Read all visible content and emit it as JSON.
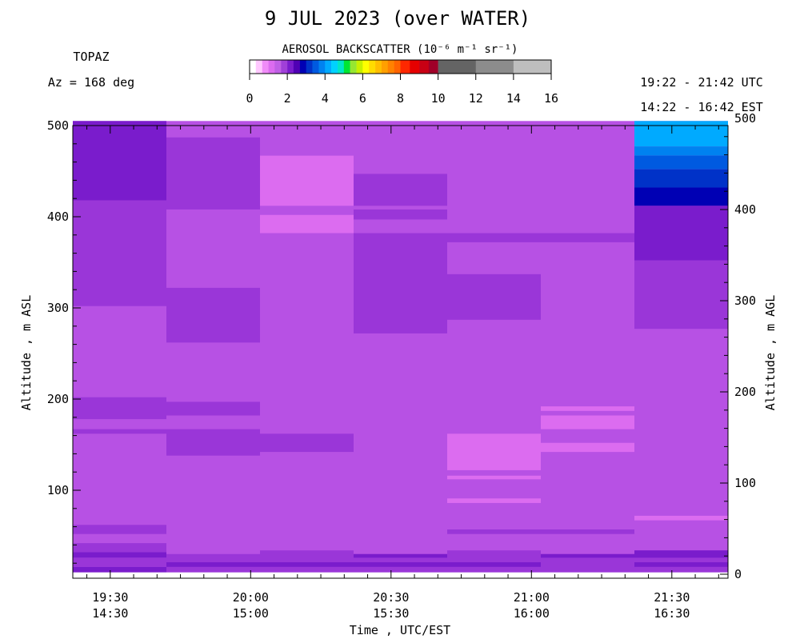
{
  "title": "9 JUL 2023 (over WATER)",
  "site": "TOPAZ",
  "azimuth": "Az = 168 deg",
  "time_range_utc": "19:22 - 21:42 UTC",
  "time_range_local": "14:22 - 16:42 EST",
  "colorbar": {
    "title": "AEROSOL BACKSCATTER (10⁻⁶ m⁻¹ sr⁻¹)",
    "ticks": [
      "0",
      "2",
      "4",
      "6",
      "8",
      "10",
      "12",
      "14",
      "16"
    ],
    "bins": [
      {
        "lo": 0.0,
        "hi": 0.33,
        "color": "#ffffff"
      },
      {
        "lo": 0.33,
        "hi": 0.67,
        "color": "#ffc8ff"
      },
      {
        "lo": 0.67,
        "hi": 1.0,
        "color": "#f08cf8"
      },
      {
        "lo": 1.0,
        "hi": 1.33,
        "color": "#dc6cf0"
      },
      {
        "lo": 1.33,
        "hi": 1.67,
        "color": "#c060e6"
      },
      {
        "lo": 1.67,
        "hi": 2.0,
        "color": "#a040d8"
      },
      {
        "lo": 2.0,
        "hi": 2.33,
        "color": "#7a1ccc"
      },
      {
        "lo": 2.33,
        "hi": 2.67,
        "color": "#5000b4"
      },
      {
        "lo": 2.67,
        "hi": 3.0,
        "color": "#0000b4"
      },
      {
        "lo": 3.0,
        "hi": 3.33,
        "color": "#0032c8"
      },
      {
        "lo": 3.33,
        "hi": 3.67,
        "color": "#005ae0"
      },
      {
        "lo": 3.67,
        "hi": 4.0,
        "color": "#0082f0"
      },
      {
        "lo": 4.0,
        "hi": 4.33,
        "color": "#00aaff"
      },
      {
        "lo": 4.33,
        "hi": 4.67,
        "color": "#00d2ff"
      },
      {
        "lo": 4.67,
        "hi": 5.0,
        "color": "#00e6c8"
      },
      {
        "lo": 5.0,
        "hi": 5.33,
        "color": "#00e632"
      },
      {
        "lo": 5.33,
        "hi": 5.67,
        "color": "#96e632"
      },
      {
        "lo": 5.67,
        "hi": 6.0,
        "color": "#c8f000"
      },
      {
        "lo": 6.0,
        "hi": 6.33,
        "color": "#ffff00"
      },
      {
        "lo": 6.33,
        "hi": 6.67,
        "color": "#ffdc00"
      },
      {
        "lo": 6.67,
        "hi": 7.0,
        "color": "#ffbe00"
      },
      {
        "lo": 7.0,
        "hi": 7.33,
        "color": "#ffa000"
      },
      {
        "lo": 7.33,
        "hi": 7.67,
        "color": "#ff8200"
      },
      {
        "lo": 7.67,
        "hi": 8.0,
        "color": "#ff6400"
      },
      {
        "lo": 8.0,
        "hi": 8.5,
        "color": "#ff2800"
      },
      {
        "lo": 8.5,
        "hi": 9.0,
        "color": "#e60000"
      },
      {
        "lo": 9.0,
        "hi": 9.5,
        "color": "#c80014"
      },
      {
        "lo": 9.5,
        "hi": 10.0,
        "color": "#a00028"
      },
      {
        "lo": 10.0,
        "hi": 12.0,
        "color": "#646464"
      },
      {
        "lo": 12.0,
        "hi": 14.0,
        "color": "#8c8c8c"
      },
      {
        "lo": 14.0,
        "hi": 16.0,
        "color": "#bebebe"
      }
    ]
  },
  "chart_data": {
    "type": "heatmap",
    "xlabel": "Time , UTC/EST",
    "ylabel_left": "Altitude , m ASL",
    "ylabel_right": "Altitude , m AGL",
    "x_range_utc": [
      "19:22",
      "21:42"
    ],
    "y_range_m": [
      10,
      505
    ],
    "x_ticks": [
      {
        "utc": "19:30",
        "est": "14:30"
      },
      {
        "utc": "20:00",
        "est": "15:00"
      },
      {
        "utc": "20:30",
        "est": "15:30"
      },
      {
        "utc": "21:00",
        "est": "16:00"
      },
      {
        "utc": "21:30",
        "est": "16:30"
      }
    ],
    "y_ticks_left": [
      "100",
      "200",
      "300",
      "400",
      "500"
    ],
    "y_ticks_right": [
      "0",
      "100",
      "200",
      "300",
      "400",
      "500"
    ],
    "background_color": "#b751e4",
    "profiles": [
      {
        "start": "19:22",
        "end": "19:42",
        "layers": [
          {
            "bottom": 418,
            "top": 505,
            "color": "#7a1ccc"
          },
          {
            "bottom": 302,
            "top": 418,
            "color": "#9a36d8"
          },
          {
            "bottom": 178,
            "top": 202,
            "color": "#9a36d8"
          },
          {
            "bottom": 162,
            "top": 167,
            "color": "#9a36d8"
          },
          {
            "bottom": 52,
            "top": 62,
            "color": "#9a36d8"
          },
          {
            "bottom": 32,
            "top": 42,
            "color": "#9a36d8"
          },
          {
            "bottom": 26,
            "top": 32,
            "color": "#7a1ccc"
          },
          {
            "bottom": 10,
            "top": 16,
            "color": "#7a1ccc"
          },
          {
            "bottom": 16,
            "top": 26,
            "color": "#9a36d8"
          }
        ]
      },
      {
        "start": "19:42",
        "end": "20:02",
        "layers": [
          {
            "bottom": 408,
            "top": 487,
            "color": "#9a36d8"
          },
          {
            "bottom": 262,
            "top": 322,
            "color": "#9a36d8"
          },
          {
            "bottom": 182,
            "top": 197,
            "color": "#9a36d8"
          },
          {
            "bottom": 138,
            "top": 167,
            "color": "#9a36d8"
          },
          {
            "bottom": 10,
            "top": 30,
            "color": "#9a36d8"
          },
          {
            "bottom": 16,
            "top": 21,
            "color": "#7a1ccc"
          }
        ]
      },
      {
        "start": "20:02",
        "end": "20:22",
        "layers": [
          {
            "bottom": 412,
            "top": 467,
            "color": "#dc6cf0"
          },
          {
            "bottom": 382,
            "top": 402,
            "color": "#dc6cf0"
          },
          {
            "bottom": 142,
            "top": 162,
            "color": "#9a36d8"
          },
          {
            "bottom": 10,
            "top": 34,
            "color": "#9a36d8"
          },
          {
            "bottom": 16,
            "top": 21,
            "color": "#7a1ccc"
          }
        ]
      },
      {
        "start": "20:22",
        "end": "20:42",
        "layers": [
          {
            "bottom": 412,
            "top": 447,
            "color": "#9a36d8"
          },
          {
            "bottom": 397,
            "top": 408,
            "color": "#9a36d8"
          },
          {
            "bottom": 272,
            "top": 382,
            "color": "#9a36d8"
          },
          {
            "bottom": 10,
            "top": 30,
            "color": "#9a36d8"
          },
          {
            "bottom": 26,
            "top": 30,
            "color": "#7a1ccc"
          },
          {
            "bottom": 16,
            "top": 21,
            "color": "#7a1ccc"
          }
        ]
      },
      {
        "start": "20:42",
        "end": "21:02",
        "layers": [
          {
            "bottom": 372,
            "top": 382,
            "color": "#9a36d8"
          },
          {
            "bottom": 287,
            "top": 337,
            "color": "#9a36d8"
          },
          {
            "bottom": 122,
            "top": 162,
            "color": "#dc6cf0"
          },
          {
            "bottom": 112,
            "top": 116,
            "color": "#dc6cf0"
          },
          {
            "bottom": 86,
            "top": 91,
            "color": "#dc6cf0"
          },
          {
            "bottom": 52,
            "top": 57,
            "color": "#9a36d8"
          },
          {
            "bottom": 10,
            "top": 34,
            "color": "#9a36d8"
          },
          {
            "bottom": 16,
            "top": 21,
            "color": "#7a1ccc"
          }
        ]
      },
      {
        "start": "21:02",
        "end": "21:22",
        "layers": [
          {
            "bottom": 372,
            "top": 382,
            "color": "#9a36d8"
          },
          {
            "bottom": 187,
            "top": 192,
            "color": "#dc6cf0"
          },
          {
            "bottom": 167,
            "top": 182,
            "color": "#dc6cf0"
          },
          {
            "bottom": 142,
            "top": 152,
            "color": "#dc6cf0"
          },
          {
            "bottom": 52,
            "top": 57,
            "color": "#9a36d8"
          },
          {
            "bottom": 10,
            "top": 30,
            "color": "#9a36d8"
          },
          {
            "bottom": 26,
            "top": 30,
            "color": "#7a1ccc"
          }
        ]
      },
      {
        "start": "21:22",
        "end": "21:42",
        "layers": [
          {
            "bottom": 477,
            "top": 505,
            "color": "#00aaff"
          },
          {
            "bottom": 467,
            "top": 477,
            "color": "#0082f0"
          },
          {
            "bottom": 452,
            "top": 467,
            "color": "#005ae0"
          },
          {
            "bottom": 432,
            "top": 452,
            "color": "#0032c8"
          },
          {
            "bottom": 412,
            "top": 432,
            "color": "#0000b4"
          },
          {
            "bottom": 352,
            "top": 412,
            "color": "#7a1ccc"
          },
          {
            "bottom": 277,
            "top": 352,
            "color": "#9a36d8"
          },
          {
            "bottom": 67,
            "top": 72,
            "color": "#dc6cf0"
          },
          {
            "bottom": 10,
            "top": 34,
            "color": "#9a36d8"
          },
          {
            "bottom": 26,
            "top": 34,
            "color": "#7a1ccc"
          },
          {
            "bottom": 16,
            "top": 21,
            "color": "#7a1ccc"
          }
        ]
      }
    ]
  }
}
